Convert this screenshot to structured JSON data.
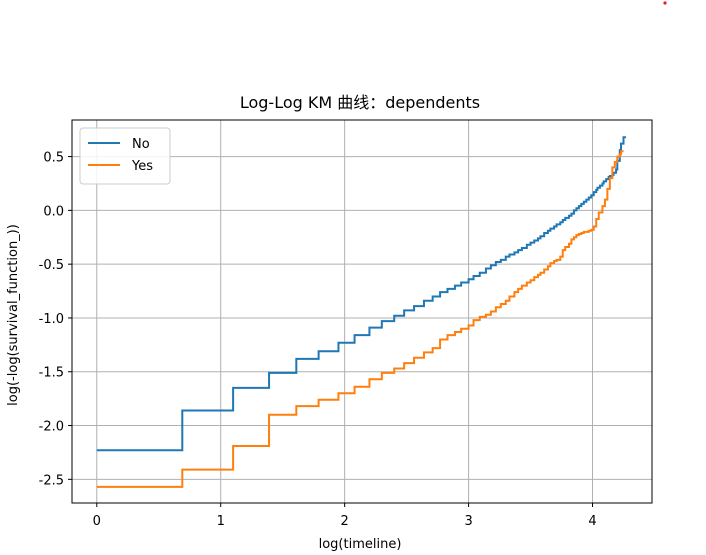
{
  "chart_data": {
    "type": "line",
    "title": "Log-Log KM 曲线：dependents",
    "xlabel": "log(timeline)",
    "ylabel": "log(-log(survival_function_))",
    "xlim": [
      -0.2,
      4.48
    ],
    "ylim": [
      -2.72,
      0.84
    ],
    "grid": true,
    "legend_position": "top-left",
    "x_ticks": [
      0,
      1,
      2,
      3,
      4
    ],
    "x_tick_labels": [
      "0",
      "1",
      "2",
      "3",
      "4"
    ],
    "y_ticks": [
      0.5,
      0.0,
      -0.5,
      -1.0,
      -1.5,
      -2.0,
      -2.5
    ],
    "y_tick_labels": [
      "0.5",
      "0.0",
      "-0.5",
      "-1.0",
      "-1.5",
      "-2.0",
      "-2.5"
    ],
    "series": [
      {
        "name": "No",
        "color": "#1f77b4",
        "step": true,
        "x": [
          0.0,
          0.69,
          1.1,
          1.39,
          1.61,
          1.79,
          1.95,
          2.08,
          2.2,
          2.3,
          2.4,
          2.48,
          2.56,
          2.64,
          2.71,
          2.77,
          2.83,
          2.89,
          2.94,
          3.0,
          3.04,
          3.09,
          3.14,
          3.18,
          3.22,
          3.26,
          3.3,
          3.33,
          3.37,
          3.4,
          3.43,
          3.47,
          3.5,
          3.53,
          3.56,
          3.58,
          3.61,
          3.64,
          3.66,
          3.69,
          3.71,
          3.74,
          3.76,
          3.78,
          3.81,
          3.83,
          3.85,
          3.87,
          3.89,
          3.91,
          3.93,
          3.95,
          3.97,
          3.99,
          4.01,
          4.03,
          4.04,
          4.06,
          4.08,
          4.09,
          4.11,
          4.13,
          4.14,
          4.16,
          4.17,
          4.19,
          4.2,
          4.22,
          4.23,
          4.25,
          4.27
        ],
        "y": [
          -2.23,
          -1.86,
          -1.65,
          -1.51,
          -1.38,
          -1.31,
          -1.23,
          -1.16,
          -1.09,
          -1.03,
          -0.98,
          -0.93,
          -0.89,
          -0.84,
          -0.8,
          -0.76,
          -0.73,
          -0.7,
          -0.67,
          -0.64,
          -0.61,
          -0.58,
          -0.54,
          -0.51,
          -0.48,
          -0.46,
          -0.43,
          -0.41,
          -0.39,
          -0.37,
          -0.35,
          -0.32,
          -0.3,
          -0.28,
          -0.26,
          -0.24,
          -0.21,
          -0.19,
          -0.17,
          -0.15,
          -0.13,
          -0.11,
          -0.09,
          -0.07,
          -0.05,
          -0.03,
          0.0,
          0.02,
          0.04,
          0.06,
          0.08,
          0.1,
          0.12,
          0.14,
          0.17,
          0.19,
          0.21,
          0.23,
          0.25,
          0.27,
          0.29,
          0.31,
          0.32,
          0.33,
          0.35,
          0.38,
          0.46,
          0.56,
          0.62,
          0.68,
          0.68
        ]
      },
      {
        "name": "Yes",
        "color": "#ff7f0e",
        "step": true,
        "x": [
          0.0,
          0.69,
          1.1,
          1.39,
          1.61,
          1.79,
          1.95,
          2.08,
          2.2,
          2.3,
          2.4,
          2.48,
          2.56,
          2.64,
          2.71,
          2.77,
          2.83,
          2.89,
          2.94,
          3.0,
          3.04,
          3.09,
          3.14,
          3.18,
          3.22,
          3.26,
          3.3,
          3.33,
          3.37,
          3.4,
          3.43,
          3.47,
          3.5,
          3.53,
          3.56,
          3.58,
          3.61,
          3.64,
          3.66,
          3.69,
          3.71,
          3.74,
          3.76,
          3.78,
          3.81,
          3.83,
          3.85,
          3.87,
          3.89,
          3.91,
          3.93,
          3.95,
          3.97,
          3.99,
          4.01,
          4.03,
          4.05,
          4.08,
          4.1,
          4.12,
          4.14,
          4.16,
          4.18,
          4.2,
          4.22,
          4.23,
          4.25
        ],
        "y": [
          -2.57,
          -2.41,
          -2.19,
          -1.9,
          -1.82,
          -1.76,
          -1.7,
          -1.64,
          -1.57,
          -1.51,
          -1.47,
          -1.42,
          -1.37,
          -1.32,
          -1.28,
          -1.2,
          -1.16,
          -1.13,
          -1.1,
          -1.07,
          -1.02,
          -0.99,
          -0.97,
          -0.94,
          -0.9,
          -0.87,
          -0.84,
          -0.8,
          -0.76,
          -0.73,
          -0.7,
          -0.67,
          -0.65,
          -0.62,
          -0.6,
          -0.58,
          -0.55,
          -0.52,
          -0.49,
          -0.47,
          -0.46,
          -0.43,
          -0.37,
          -0.34,
          -0.31,
          -0.27,
          -0.25,
          -0.23,
          -0.22,
          -0.21,
          -0.2,
          -0.2,
          -0.19,
          -0.18,
          -0.15,
          -0.08,
          -0.02,
          0.04,
          0.1,
          0.2,
          0.3,
          0.4,
          0.45,
          0.5,
          0.52,
          0.55,
          0.55
        ]
      }
    ]
  }
}
